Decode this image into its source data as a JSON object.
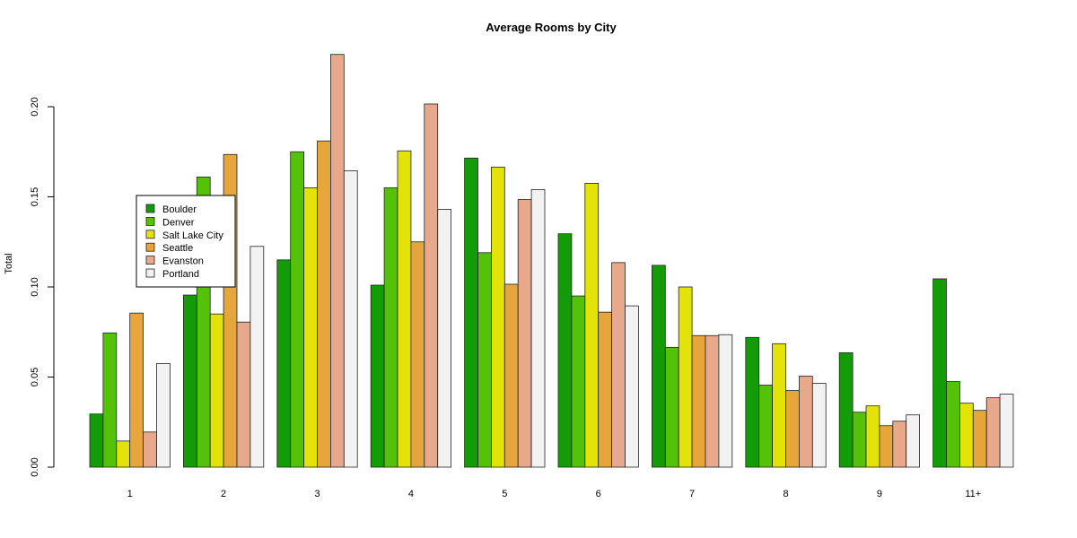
{
  "chart_data": {
    "type": "bar",
    "title": "Average Rooms by City",
    "xlabel": "",
    "ylabel": "Total",
    "ylim": [
      0,
      0.23
    ],
    "yticks": [
      "0.00",
      "0.05",
      "0.10",
      "0.15",
      "0.20"
    ],
    "ytick_values": [
      0,
      0.05,
      0.1,
      0.15,
      0.2
    ],
    "categories": [
      "1",
      "2",
      "3",
      "4",
      "5",
      "6",
      "7",
      "8",
      "9",
      "11+"
    ],
    "legend_position": "left",
    "grid": false,
    "series": [
      {
        "name": "Boulder",
        "color": "#149c08",
        "values": [
          0.0295,
          0.0955,
          0.115,
          0.101,
          0.1715,
          0.1295,
          0.112,
          0.072,
          0.0635,
          0.1045
        ]
      },
      {
        "name": "Denver",
        "color": "#55c20a",
        "values": [
          0.0745,
          0.161,
          0.175,
          0.155,
          0.119,
          0.095,
          0.0665,
          0.0455,
          0.0305,
          0.0475
        ]
      },
      {
        "name": "Salt Lake City",
        "color": "#e3e30a",
        "values": [
          0.0145,
          0.085,
          0.155,
          0.1755,
          0.1665,
          0.1575,
          0.1,
          0.0685,
          0.034,
          0.0355
        ]
      },
      {
        "name": "Seattle",
        "color": "#e6a63c",
        "values": [
          0.0855,
          0.1735,
          0.181,
          0.125,
          0.1015,
          0.086,
          0.073,
          0.0425,
          0.023,
          0.0315
        ]
      },
      {
        "name": "Evanston",
        "color": "#e8a88b",
        "values": [
          0.0195,
          0.0805,
          0.229,
          0.2015,
          0.1485,
          0.1135,
          0.073,
          0.0505,
          0.0255,
          0.0385
        ]
      },
      {
        "name": "Portland",
        "color": "#f2f2f2",
        "values": [
          0.0575,
          0.1225,
          0.1645,
          0.143,
          0.154,
          0.0895,
          0.0735,
          0.0465,
          0.029,
          0.0405
        ]
      }
    ]
  }
}
